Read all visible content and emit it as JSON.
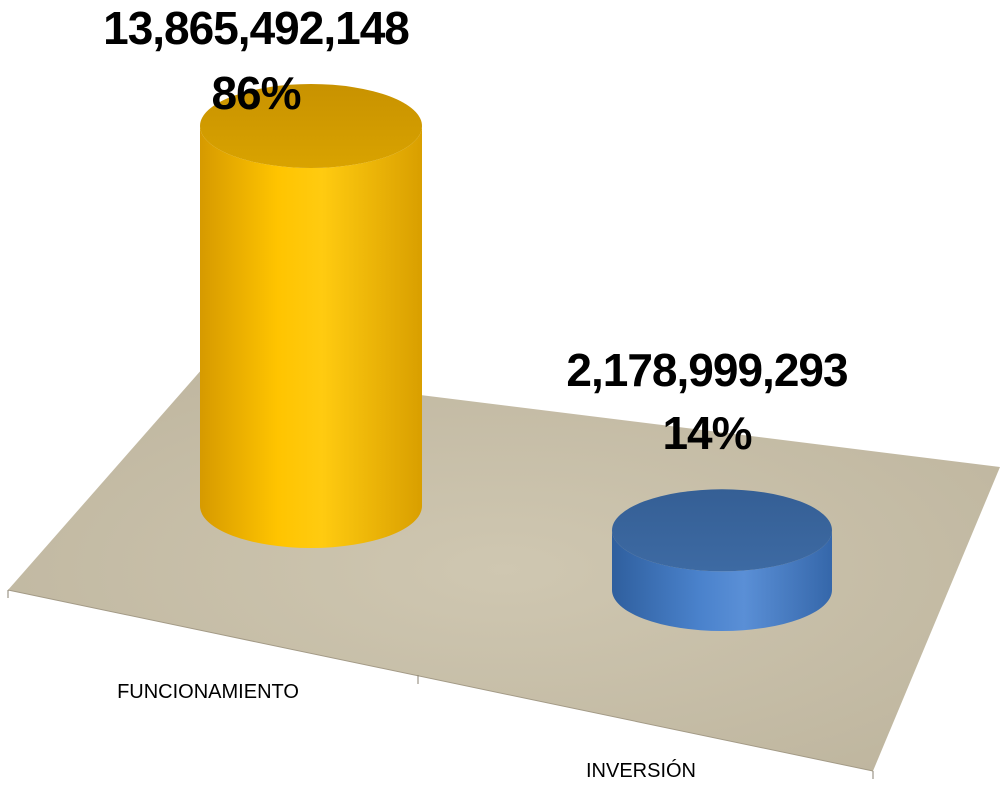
{
  "chart_data": {
    "type": "bar",
    "style": "3d-cylinder",
    "categories": [
      "FUNCIONAMIENTO",
      "INVERSIÓN"
    ],
    "values": [
      13865492148,
      2178999293
    ],
    "value_labels": [
      "13,865,492,148",
      "2,178,999,293"
    ],
    "percent_labels": [
      "86%",
      "14%"
    ],
    "colors": [
      "#F5B800",
      "#4472C4"
    ],
    "floor_color": "#C8BFA8",
    "title": "",
    "xlabel": "",
    "ylabel": "",
    "legend": "none",
    "grid": false
  }
}
